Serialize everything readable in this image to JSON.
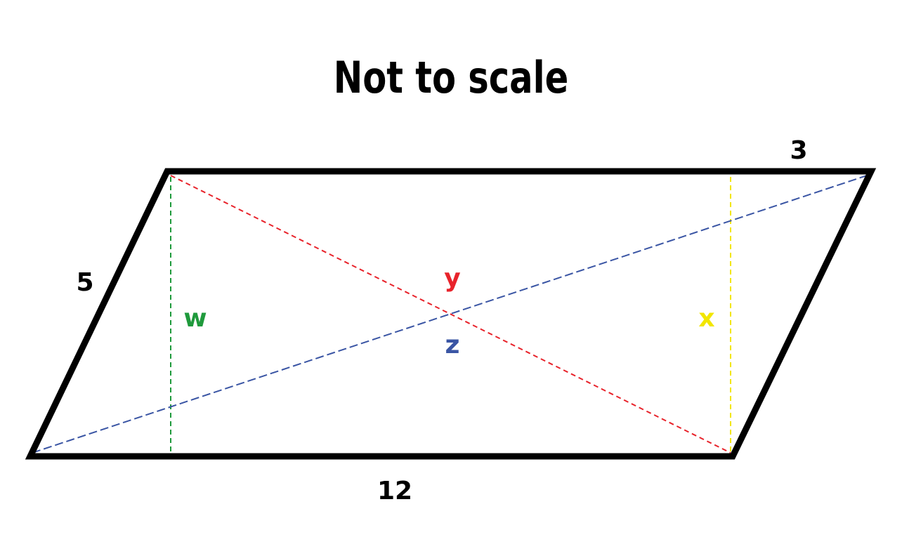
{
  "title": "Not to scale",
  "side_labels": {
    "top_right": "3",
    "left": "5",
    "bottom": "12"
  },
  "variables": {
    "w": {
      "label": "w",
      "color": "#1f9a3c"
    },
    "x": {
      "label": "x",
      "color": "#f2e600"
    },
    "y": {
      "label": "y",
      "color": "#e8232b"
    },
    "z": {
      "label": "z",
      "color": "#3a55a4"
    }
  },
  "colors": {
    "outline": "#000000",
    "background": "#ffffff"
  }
}
